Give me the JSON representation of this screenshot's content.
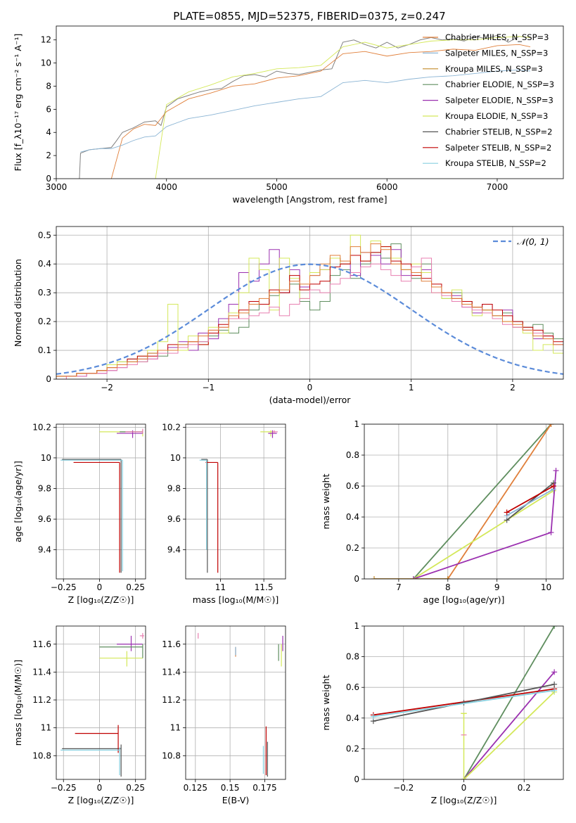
{
  "figure": {
    "title": "PLATE=0855, MJD=52375, FIBERID=0375, z=0.247"
  },
  "colors": {
    "chabrier_miles": "#e07f3a",
    "salpeter_miles": "#8ab4d4",
    "kroupa_miles": "#c48a2a",
    "chabrier_elodie": "#5f8e5f",
    "salpeter_elodie": "#9b30b0",
    "kroupa_elodie": "#d4e85a",
    "chabrier_stelib": "#555555",
    "salpeter_stelib": "#c00000",
    "kroupa_stelib": "#88d0e0",
    "observed": "#808080",
    "pink": "#e87fb0",
    "gaussian": "#5b8bd9"
  },
  "chart_data": [
    {
      "id": "spectrum",
      "type": "line",
      "xlabel": "wavelength [Angstrom, rest frame]",
      "ylabel": "Flux [f_λ10⁻¹⁷ erg cm⁻² s⁻¹ A⁻¹]",
      "xlim": [
        3000,
        7600
      ],
      "ylim": [
        0,
        13.2
      ],
      "xticks": [
        3000,
        4000,
        5000,
        6000,
        7000
      ],
      "yticks": [
        0,
        2,
        4,
        6,
        8,
        10,
        12
      ],
      "grid": false,
      "legend_position": "top-right",
      "legend": [
        {
          "label": "Chabrier MILES, N_SSP=3",
          "color": "chabrier_miles"
        },
        {
          "label": "Salpeter MILES, N_SSP=3",
          "color": "salpeter_miles"
        },
        {
          "label": "Kroupa MILES, N_SSP=3",
          "color": "kroupa_miles"
        },
        {
          "label": "Chabrier ELODIE, N_SSP=3",
          "color": "chabrier_elodie"
        },
        {
          "label": "Salpeter ELODIE, N_SSP=3",
          "color": "salpeter_elodie"
        },
        {
          "label": "Kroupa ELODIE, N_SSP=3",
          "color": "kroupa_elodie"
        },
        {
          "label": "Chabrier STELIB, N_SSP=2",
          "color": "chabrier_stelib"
        },
        {
          "label": "Salpeter STELIB, N_SSP=2",
          "color": "salpeter_stelib"
        },
        {
          "label": "Kroupa STELIB, N_SSP=2",
          "color": "kroupa_stelib"
        }
      ],
      "series": [
        {
          "color": "observed",
          "x": [
            3210,
            3220,
            3300,
            3400,
            3500,
            3540,
            3600,
            3700,
            3800,
            3900,
            3950,
            4000,
            4100,
            4200,
            4300,
            4400,
            4500,
            4600,
            4700,
            4800,
            4900,
            5000,
            5100,
            5200,
            5300,
            5400,
            5500,
            5600,
            5700,
            5800,
            5900,
            6000,
            6100,
            6200,
            6300,
            6400,
            6500,
            6600,
            6700,
            6800,
            6900,
            7000,
            7100,
            7200,
            7300
          ],
          "y": [
            0,
            2.2,
            2.5,
            2.6,
            2.7,
            3.2,
            4.0,
            4.4,
            4.9,
            5.0,
            4.6,
            6.2,
            6.9,
            7.2,
            7.5,
            7.7,
            7.8,
            8.4,
            8.9,
            9.0,
            8.8,
            9.3,
            9.1,
            9.0,
            9.2,
            9.4,
            9.5,
            11.8,
            12.0,
            11.6,
            11.3,
            11.8,
            11.3,
            11.6,
            12.0,
            12.2,
            12.0,
            12.1,
            11.9,
            12.3,
            12.1,
            12.4,
            11.8,
            12.3,
            12.2
          ]
        },
        {
          "color": "chabrier_miles",
          "x": [
            3500,
            3600,
            3700,
            3800,
            3900,
            4000,
            4200,
            4400,
            4600,
            4800,
            5000,
            5200,
            5400,
            5600,
            5800,
            6000,
            6200,
            6400,
            6600,
            6800,
            7000,
            7200,
            7300
          ],
          "y": [
            0,
            3.5,
            4.3,
            4.7,
            4.6,
            5.8,
            6.9,
            7.4,
            8.0,
            8.2,
            8.7,
            8.9,
            9.3,
            10.8,
            11.0,
            10.6,
            10.9,
            11.0,
            11.2,
            11.1,
            11.5,
            11.6,
            11.4
          ]
        },
        {
          "color": "salpeter_miles",
          "x": [
            3220,
            3300,
            3400,
            3500,
            3600,
            3700,
            3800,
            3900,
            4000,
            4200,
            4400,
            4600,
            4800,
            5000,
            5200,
            5400,
            5600,
            5800,
            6000,
            6200,
            6400,
            6600,
            6800,
            7000,
            7200,
            7300
          ],
          "y": [
            2.3,
            2.5,
            2.6,
            2.6,
            2.9,
            3.3,
            3.6,
            3.7,
            4.5,
            5.2,
            5.5,
            5.9,
            6.3,
            6.6,
            6.9,
            7.1,
            8.3,
            8.5,
            8.3,
            8.6,
            8.8,
            8.9,
            9.1,
            9.3,
            9.4,
            9.3
          ]
        },
        {
          "color": "kroupa_elodie",
          "x": [
            3900,
            4000,
            4200,
            4400,
            4600,
            4800,
            5000,
            5200,
            5400,
            5600,
            5800,
            6000,
            6200,
            6400,
            6600,
            6800,
            7000,
            7200,
            7300
          ],
          "y": [
            0,
            6.4,
            7.5,
            8.1,
            8.8,
            9.1,
            9.5,
            9.6,
            9.8,
            11.4,
            11.8,
            11.3,
            11.6,
            11.9,
            12.0,
            12.0,
            12.2,
            12.3,
            12.2
          ]
        }
      ]
    },
    {
      "id": "residuals",
      "type": "histogram",
      "xlabel": "(data-model)/error",
      "ylabel": "Normed distribution",
      "xlim": [
        -2.5,
        2.5
      ],
      "ylim": [
        0,
        0.53
      ],
      "xticks": [
        -2,
        -1,
        0,
        1,
        2
      ],
      "yticks": [
        0.0,
        0.1,
        0.2,
        0.3,
        0.4,
        0.5
      ],
      "grid": true,
      "legend_position": "top-right",
      "legend": [
        {
          "label": "𝒩(0, 1)",
          "color": "gaussian",
          "dashed": true
        }
      ],
      "bin_width": 0.1,
      "bin_start": -2.5,
      "series": [
        {
          "color": "chabrier_elodie",
          "values": [
            0.01,
            0.01,
            0.02,
            0.02,
            0.03,
            0.05,
            0.06,
            0.07,
            0.06,
            0.09,
            0.08,
            0.1,
            0.12,
            0.1,
            0.13,
            0.15,
            0.17,
            0.16,
            0.18,
            0.24,
            0.26,
            0.29,
            0.3,
            0.33,
            0.27,
            0.24,
            0.27,
            0.36,
            0.38,
            0.35,
            0.4,
            0.44,
            0.42,
            0.47,
            0.38,
            0.35,
            0.4,
            0.32,
            0.28,
            0.3,
            0.27,
            0.25,
            0.24,
            0.22,
            0.23,
            0.2,
            0.18,
            0.19,
            0.16,
            0.14
          ]
        },
        {
          "color": "salpeter_elodie",
          "values": [
            0.0,
            0.01,
            0.01,
            0.02,
            0.02,
            0.03,
            0.04,
            0.06,
            0.07,
            0.07,
            0.1,
            0.11,
            0.13,
            0.1,
            0.16,
            0.14,
            0.21,
            0.26,
            0.37,
            0.34,
            0.4,
            0.45,
            0.3,
            0.38,
            0.32,
            0.36,
            0.38,
            0.42,
            0.4,
            0.36,
            0.44,
            0.43,
            0.4,
            0.45,
            0.36,
            0.37,
            0.38,
            0.32,
            0.3,
            0.29,
            0.25,
            0.23,
            0.26,
            0.22,
            0.24,
            0.18,
            0.17,
            0.14,
            0.15,
            0.12
          ]
        },
        {
          "color": "kroupa_elodie",
          "values": [
            0.01,
            0.01,
            0.02,
            0.02,
            0.03,
            0.05,
            0.06,
            0.06,
            0.08,
            0.1,
            0.13,
            0.26,
            0.1,
            0.15,
            0.12,
            0.18,
            0.16,
            0.23,
            0.3,
            0.42,
            0.38,
            0.24,
            0.42,
            0.35,
            0.28,
            0.37,
            0.38,
            0.42,
            0.4,
            0.5,
            0.41,
            0.48,
            0.46,
            0.42,
            0.38,
            0.4,
            0.37,
            0.3,
            0.28,
            0.31,
            0.26,
            0.22,
            0.24,
            0.22,
            0.2,
            0.18,
            0.16,
            0.1,
            0.12,
            0.09
          ]
        },
        {
          "color": "salpeter_stelib",
          "values": [
            0.01,
            0.01,
            0.02,
            0.02,
            0.03,
            0.04,
            0.05,
            0.07,
            0.08,
            0.08,
            0.1,
            0.12,
            0.11,
            0.13,
            0.12,
            0.16,
            0.19,
            0.21,
            0.24,
            0.27,
            0.26,
            0.31,
            0.3,
            0.36,
            0.31,
            0.33,
            0.34,
            0.39,
            0.4,
            0.43,
            0.41,
            0.44,
            0.46,
            0.41,
            0.4,
            0.36,
            0.35,
            0.33,
            0.3,
            0.28,
            0.27,
            0.25,
            0.26,
            0.24,
            0.22,
            0.2,
            0.18,
            0.17,
            0.15,
            0.13
          ]
        },
        {
          "color": "pink",
          "values": [
            0.0,
            0.01,
            0.01,
            0.02,
            0.02,
            0.03,
            0.04,
            0.05,
            0.06,
            0.07,
            0.09,
            0.09,
            0.11,
            0.12,
            0.13,
            0.17,
            0.18,
            0.21,
            0.21,
            0.22,
            0.23,
            0.25,
            0.22,
            0.26,
            0.28,
            0.31,
            0.3,
            0.33,
            0.35,
            0.37,
            0.39,
            0.4,
            0.38,
            0.36,
            0.34,
            0.39,
            0.42,
            0.3,
            0.29,
            0.27,
            0.25,
            0.24,
            0.23,
            0.21,
            0.19,
            0.18,
            0.17,
            0.16,
            0.14,
            0.12
          ]
        },
        {
          "color": "chabrier_miles",
          "values": [
            0.01,
            0.01,
            0.02,
            0.02,
            0.03,
            0.04,
            0.05,
            0.06,
            0.07,
            0.09,
            0.1,
            0.1,
            0.12,
            0.13,
            0.15,
            0.17,
            0.18,
            0.22,
            0.23,
            0.26,
            0.28,
            0.3,
            0.31,
            0.34,
            0.33,
            0.36,
            0.4,
            0.43,
            0.41,
            0.46,
            0.44,
            0.47,
            0.45,
            0.4,
            0.38,
            0.37,
            0.34,
            0.32,
            0.3,
            0.28,
            0.26,
            0.25,
            0.24,
            0.22,
            0.2,
            0.19,
            0.17,
            0.15,
            0.14,
            0.12
          ]
        },
        {
          "color": "gaussian_curve",
          "normal": true
        }
      ]
    },
    {
      "id": "age-vs-metallicity",
      "type": "scatter",
      "xlabel": "Z [log₁₀(Z/Z☉)]",
      "ylabel": "age  [log₁₀(age/yr)]",
      "xlim": [
        -0.3,
        0.32
      ],
      "ylim": [
        9.21,
        10.22
      ],
      "xticks": [
        -0.25,
        0.0,
        0.25
      ],
      "yticks": [
        9.4,
        9.6,
        9.8,
        10.0,
        10.2
      ],
      "grid": true
    },
    {
      "id": "age-vs-mass",
      "type": "scatter",
      "xlabel": "mass [log₁₀(M/M☉)]",
      "ylabel": "",
      "xlim": [
        10.6,
        11.75
      ],
      "ylim": [
        9.21,
        10.22
      ],
      "xticks": [
        11.0,
        11.5
      ],
      "yticks": [
        9.4,
        9.6,
        9.8,
        10.0,
        10.2
      ],
      "grid": true
    },
    {
      "id": "massweight-vs-age",
      "type": "line",
      "xlabel": "age  [log₁₀(age/yr)]",
      "ylabel": "mass weight",
      "xlim": [
        6.3,
        10.35
      ],
      "ylim": [
        0,
        1.0
      ],
      "xticks": [
        7,
        8,
        9,
        10
      ],
      "yticks": [
        0.0,
        0.2,
        0.4,
        0.6,
        0.8,
        1.0
      ],
      "grid": true
    },
    {
      "id": "mass-vs-metallicity",
      "type": "scatter",
      "xlabel": "Z [log₁₀(Z/Z☉)]",
      "ylabel": "mass [log₁₀(M/M☉)]",
      "xlim": [
        -0.3,
        0.32
      ],
      "ylim": [
        10.63,
        11.73
      ],
      "xticks": [
        -0.25,
        0.0,
        0.25
      ],
      "yticks": [
        10.8,
        11.0,
        11.2,
        11.4,
        11.6
      ],
      "grid": true
    },
    {
      "id": "mass-vs-extinction",
      "type": "scatter",
      "xlabel": "E(B-V)",
      "ylabel": "",
      "xlim": [
        0.118,
        0.19
      ],
      "ylim": [
        10.63,
        11.73
      ],
      "xticks": [
        0.125,
        0.15,
        0.175
      ],
      "yticks": [
        10.8,
        11.0,
        11.2,
        11.4,
        11.6
      ],
      "grid": true
    },
    {
      "id": "massweight-vs-metallicity",
      "type": "line",
      "xlabel": "Z [log₁₀(Z/Z☉)]",
      "ylabel": "mass weight",
      "xlim": [
        -0.33,
        0.33
      ],
      "ylim": [
        0,
        1.0
      ],
      "xticks": [
        -0.2,
        0.0,
        0.2
      ],
      "yticks": [
        0.0,
        0.2,
        0.4,
        0.6,
        0.8,
        1.0
      ],
      "grid": true
    }
  ]
}
